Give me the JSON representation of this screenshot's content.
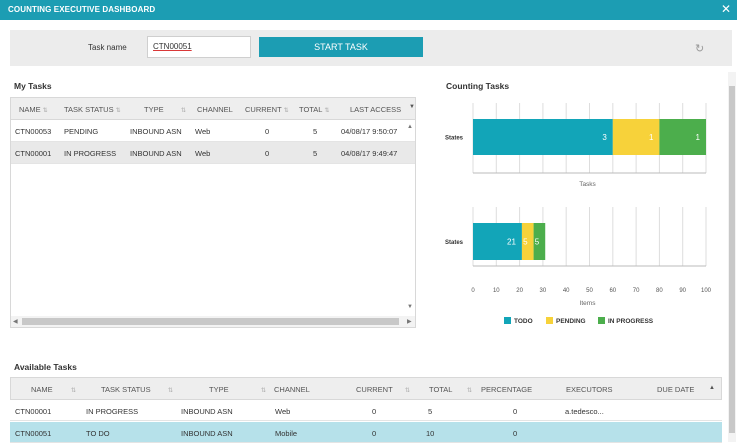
{
  "window": {
    "title": "COUNTING EXECUTIVE DASHBOARD",
    "close_glyph": "✕"
  },
  "taskbar": {
    "task_name_label": "Task name",
    "task_name_value": "CTN00051",
    "start_button": "START TASK",
    "refresh_glyph": "↻"
  },
  "my_tasks": {
    "title": "My Tasks",
    "columns": [
      "NAME",
      "TASK STATUS",
      "TYPE",
      "CHANNEL",
      "CURRENT",
      "TOTAL",
      "LAST ACCESS"
    ],
    "rows": [
      {
        "name": "CTN00053",
        "status": "PENDING",
        "type": "INBOUND ASN",
        "channel": "Web",
        "current": "0",
        "total": "5",
        "last_access": "04/08/17 9:50:07"
      },
      {
        "name": "CTN00001",
        "status": "IN PROGRESS",
        "type": "INBOUND ASN",
        "channel": "Web",
        "current": "0",
        "total": "5",
        "last_access": "04/08/17 9:49:47"
      }
    ]
  },
  "counting_tasks": {
    "title": "Counting Tasks",
    "colors": {
      "todo": "#12a5b8",
      "pending": "#f7d23a",
      "in_progress": "#4cae4c"
    },
    "legend": [
      "TODO",
      "PENDING",
      "IN PROGRESS"
    ]
  },
  "chart_data": [
    {
      "type": "bar",
      "orientation": "horizontal",
      "stacked": true,
      "categories": [
        "States"
      ],
      "series": [
        {
          "name": "TODO",
          "values": [
            3
          ]
        },
        {
          "name": "PENDING",
          "values": [
            1
          ]
        },
        {
          "name": "IN PROGRESS",
          "values": [
            1
          ]
        }
      ],
      "xlabel": "Tasks",
      "xlim": [
        0,
        5
      ],
      "grid": true,
      "legend": "bottom"
    },
    {
      "type": "bar",
      "orientation": "horizontal",
      "stacked": true,
      "categories": [
        "States"
      ],
      "series": [
        {
          "name": "TODO",
          "values": [
            21
          ]
        },
        {
          "name": "PENDING",
          "values": [
            5
          ]
        },
        {
          "name": "IN PROGRESS",
          "values": [
            5
          ]
        }
      ],
      "xlabel": "Items",
      "xlim": [
        0,
        100
      ],
      "xticks": [
        "0",
        "10",
        "20",
        "30",
        "40",
        "50",
        "60",
        "70",
        "80",
        "90",
        "100"
      ],
      "grid": true,
      "legend": "bottom"
    }
  ],
  "available_tasks": {
    "title": "Available Tasks",
    "columns": [
      "NAME",
      "TASK STATUS",
      "TYPE",
      "CHANNEL",
      "CURRENT",
      "TOTAL",
      "PERCENTAGE",
      "EXECUTORS",
      "DUE DATE"
    ],
    "rows": [
      {
        "name": "CTN00001",
        "status": "IN PROGRESS",
        "type": "INBOUND ASN",
        "channel": "Web",
        "current": "0",
        "total": "5",
        "percentage": "0",
        "executors": "a.tedesco..."
      },
      {
        "name": "CTN00051",
        "status": "TO DO",
        "type": "INBOUND ASN",
        "channel": "Mobile",
        "current": "0",
        "total": "10",
        "percentage": "0",
        "executors": ""
      }
    ]
  }
}
